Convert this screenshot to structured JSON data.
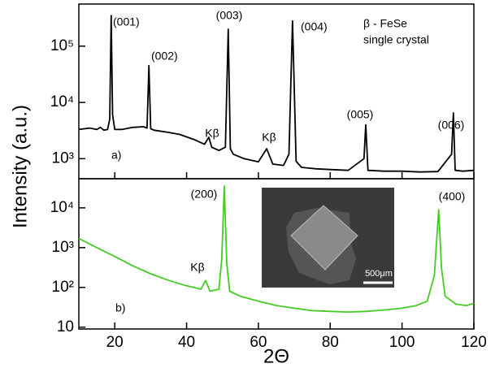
{
  "chart_data": [
    {
      "type": "line",
      "yscale": "log",
      "ylabel": "Intensity (a.u.)",
      "x": [
        10,
        13,
        15,
        16,
        17,
        18,
        18.6,
        19.0,
        19.4,
        20,
        22,
        25,
        28,
        29,
        29.5,
        30,
        31,
        34,
        38,
        42,
        45,
        46.2,
        47,
        49,
        50.8,
        51.6,
        52.2,
        53,
        56,
        60,
        62.3,
        64,
        67,
        68.5,
        69.5,
        70.5,
        72,
        76,
        80,
        85,
        89.4,
        89.9,
        90.5,
        95,
        100,
        105,
        110,
        113.8,
        114.3,
        114.8,
        117,
        120
      ],
      "series": [
        {
          "color": "#000000",
          "values": [
            3300,
            3500,
            3300,
            3600,
            3200,
            3300,
            5000,
            350000,
            6000,
            3300,
            3300,
            3600,
            3700,
            3500,
            45000,
            3400,
            3200,
            3000,
            2700,
            2200,
            1800,
            2400,
            1600,
            1400,
            1600,
            200000,
            1500,
            1200,
            1000,
            880,
            1500,
            800,
            760,
            1200,
            280000,
            900,
            700,
            660,
            640,
            620,
            1000,
            4000,
            620,
            600,
            600,
            580,
            590,
            1200,
            6500,
            620,
            600,
            620
          ]
        }
      ],
      "xlim": [
        10,
        120
      ],
      "ylim": [
        440,
        560000
      ],
      "yticks": [
        {
          "value": 1000,
          "label": "10³"
        },
        {
          "value": 10000,
          "label": "10⁴"
        },
        {
          "value": 100000,
          "label": "10⁵"
        }
      ],
      "annotations": [
        "(001)",
        "(002)",
        "(003)",
        "(004)",
        "(005)",
        "(006)",
        "Kβ",
        "Kβ",
        "β - FeSe",
        "single crystal",
        "a)"
      ]
    },
    {
      "type": "line",
      "yscale": "log",
      "xlabel": "2Θ",
      "x": [
        10,
        15,
        20,
        25,
        30,
        35,
        40,
        44,
        45.3,
        46.5,
        49,
        49.8,
        50.5,
        51.2,
        52,
        55,
        60,
        65,
        70,
        75,
        80,
        85,
        90,
        95,
        100,
        104,
        107,
        109,
        110.2,
        111,
        112,
        115,
        118,
        120
      ],
      "series": [
        {
          "color": "#44cc22",
          "values": [
            1700,
            1000,
            600,
            350,
            220,
            150,
            110,
            90,
            150,
            80,
            90,
            500,
            35000,
            400,
            80,
            60,
            45,
            35,
            30,
            26,
            25,
            24,
            25,
            27,
            30,
            35,
            45,
            200,
            9000,
            300,
            60,
            38,
            35,
            40
          ]
        }
      ],
      "xlim": [
        10,
        120
      ],
      "ylim": [
        9,
        54000
      ],
      "xticks": [
        20,
        40,
        60,
        80,
        100,
        120
      ],
      "yticks": [
        10,
        {
          "value": 100,
          "label": "10²"
        },
        {
          "value": 1000,
          "label": "10³"
        },
        {
          "value": 10000,
          "label": "10⁴"
        }
      ],
      "annotations": [
        "(200)",
        "(400)",
        "Kβ",
        "b)",
        "500μm"
      ]
    }
  ]
}
